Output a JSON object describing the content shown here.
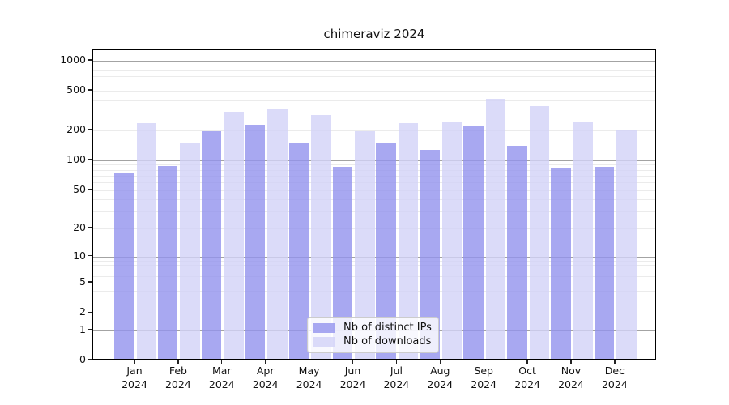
{
  "figure": {
    "title": "chimeraviz 2024"
  },
  "chart_data": {
    "type": "bar",
    "title": "chimeraviz 2024",
    "categories": [
      "Jan 2024",
      "Feb 2024",
      "Mar 2024",
      "Apr 2024",
      "May 2024",
      "Jun 2024",
      "Jul 2024",
      "Aug 2024",
      "Sep 2024",
      "Oct 2024",
      "Nov 2024",
      "Dec 2024"
    ],
    "series": [
      {
        "name": "Nb of distinct IPs",
        "color": "#9292ee",
        "values": [
          72,
          85,
          190,
          218,
          142,
          82,
          146,
          123,
          215,
          135,
          80,
          82
        ]
      },
      {
        "name": "Nb of downloads",
        "color": "#d2d2f8",
        "values": [
          228,
          146,
          295,
          322,
          278,
          190,
          228,
          238,
          400,
          338,
          236,
          198
        ]
      }
    ],
    "bar_alpha": 0.8,
    "yscale": "log10(value+1)",
    "yticks": [
      0,
      1,
      2,
      5,
      10,
      20,
      50,
      100,
      200,
      500,
      1000
    ],
    "ylim": [
      0,
      1276
    ],
    "xlabel": "",
    "ylabel": "",
    "grid": true,
    "legend_position": "lower center",
    "colors": {
      "grid_minor": "#ebebeb",
      "grid_major": "#a3a3a3",
      "spine": "#000000",
      "background": "#ffffff"
    }
  }
}
